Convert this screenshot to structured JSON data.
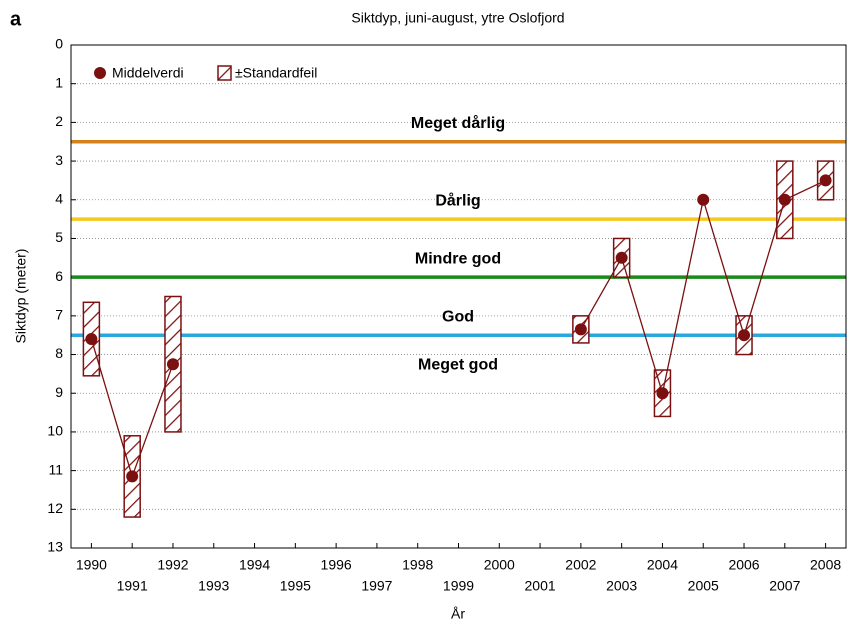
{
  "chart_data": {
    "type": "line",
    "panel_label": "a",
    "title": "Siktdyp, juni-august, ytre Oslofjord",
    "x_label": "År",
    "y_label": "Siktdyp (meter)",
    "x": [
      1990,
      1991,
      1992,
      1993,
      1994,
      1995,
      1996,
      1997,
      1998,
      1999,
      2000,
      2001,
      2002,
      2003,
      2004,
      2005,
      2006,
      2007,
      2008
    ],
    "series": [
      {
        "name": "Middelverdi",
        "color": "#7b1010",
        "values": [
          7.6,
          11.15,
          8.25,
          null,
          null,
          null,
          null,
          null,
          null,
          null,
          null,
          null,
          7.35,
          5.5,
          9.0,
          4.0,
          7.5,
          4.0,
          3.5
        ]
      }
    ],
    "error_name": "±Standardfeil",
    "errors": [
      0.95,
      1.05,
      1.75,
      null,
      null,
      null,
      null,
      null,
      null,
      null,
      null,
      null,
      0.35,
      0.5,
      0.6,
      0,
      0.5,
      1.0,
      0.5
    ],
    "xlim": [
      1989.5,
      2008.5
    ],
    "xticks": [
      1990,
      1991,
      1992,
      1993,
      1994,
      1995,
      1996,
      1997,
      1998,
      1999,
      2000,
      2001,
      2002,
      2003,
      2004,
      2005,
      2006,
      2007,
      2008
    ],
    "ylim": [
      0,
      13
    ],
    "y_reversed": true,
    "yticks": [
      0,
      1,
      2,
      3,
      4,
      5,
      6,
      7,
      8,
      9,
      10,
      11,
      12,
      13
    ],
    "grid": true,
    "reference_lines": [
      {
        "value": 2.5,
        "color": "#d4821c"
      },
      {
        "value": 4.5,
        "color": "#f5c919"
      },
      {
        "value": 6,
        "color": "#1a8a1a"
      },
      {
        "value": 7.5,
        "color": "#29a8e0"
      }
    ],
    "annotations": [
      "Meget dårlig",
      "Dårlig",
      "Mindre god",
      "God",
      "Meget god"
    ],
    "legend": "upper left"
  }
}
